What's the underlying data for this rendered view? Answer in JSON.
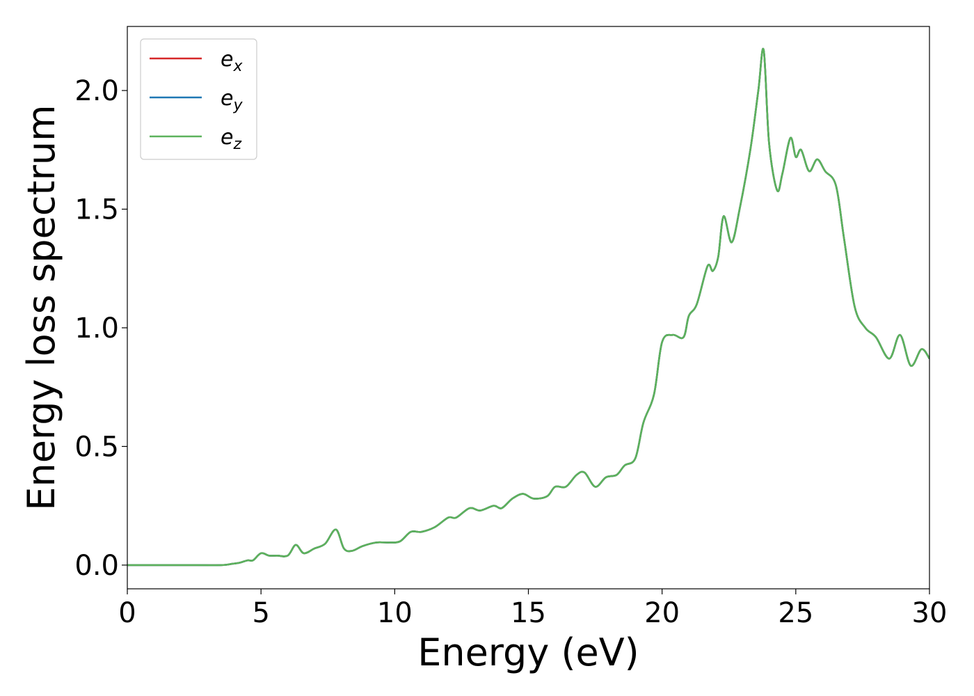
{
  "chart_data": {
    "type": "line",
    "xlabel": "Energy (eV)",
    "ylabel": "Energy loss spectrum",
    "xlim": [
      0,
      30
    ],
    "ylim": [
      -0.1,
      2.27
    ],
    "xticks": [
      "0",
      "5",
      "10",
      "15",
      "20",
      "25",
      "30"
    ],
    "yticks": [
      "0.0",
      "0.5",
      "1.0",
      "1.5",
      "2.0"
    ],
    "grid": false,
    "legend_position": "top-left",
    "series": [
      {
        "name": "e",
        "subscript": "x",
        "color": "#d62728",
        "x": [
          0,
          2,
          3.5,
          3.9,
          4.2,
          4.5,
          4.7,
          5.0,
          5.3,
          5.6,
          6.0,
          6.3,
          6.6,
          7.0,
          7.4,
          7.8,
          8.1,
          8.4,
          8.8,
          9.3,
          9.8,
          10.2,
          10.6,
          11.0,
          11.5,
          12.0,
          12.3,
          12.8,
          13.2,
          13.7,
          14.0,
          14.4,
          14.8,
          15.2,
          15.7,
          16.0,
          16.4,
          16.8,
          17.1,
          17.5,
          17.9,
          18.3,
          18.6,
          19.0,
          19.3,
          19.7,
          20.0,
          20.4,
          20.8,
          21.0,
          21.3,
          21.7,
          21.9,
          22.1,
          22.3,
          22.6,
          22.9,
          23.3,
          23.6,
          23.8,
          24.0,
          24.3,
          24.5,
          24.8,
          25.0,
          25.2,
          25.5,
          25.8,
          26.1,
          26.5,
          26.8,
          27.2,
          27.6,
          28.0,
          28.5,
          28.9,
          29.3,
          29.7,
          30.0
        ],
        "values": [
          0.0,
          0.0,
          0.0,
          0.005,
          0.01,
          0.02,
          0.02,
          0.05,
          0.04,
          0.04,
          0.04,
          0.085,
          0.05,
          0.07,
          0.09,
          0.15,
          0.07,
          0.06,
          0.08,
          0.095,
          0.095,
          0.1,
          0.14,
          0.14,
          0.16,
          0.2,
          0.2,
          0.24,
          0.23,
          0.25,
          0.24,
          0.28,
          0.3,
          0.28,
          0.29,
          0.33,
          0.33,
          0.38,
          0.39,
          0.33,
          0.37,
          0.38,
          0.42,
          0.45,
          0.6,
          0.72,
          0.94,
          0.97,
          0.96,
          1.05,
          1.1,
          1.26,
          1.24,
          1.3,
          1.47,
          1.36,
          1.5,
          1.75,
          2.0,
          2.17,
          1.78,
          1.58,
          1.65,
          1.8,
          1.72,
          1.75,
          1.66,
          1.71,
          1.66,
          1.6,
          1.38,
          1.09,
          1.0,
          0.96,
          0.87,
          0.97,
          0.84,
          0.91,
          0.87
        ]
      },
      {
        "name": "e",
        "subscript": "y",
        "color": "#1f77b4",
        "x": [
          0,
          2,
          3.5,
          3.9,
          4.2,
          4.5,
          4.7,
          5.0,
          5.3,
          5.6,
          6.0,
          6.3,
          6.6,
          7.0,
          7.4,
          7.8,
          8.1,
          8.4,
          8.8,
          9.3,
          9.8,
          10.2,
          10.6,
          11.0,
          11.5,
          12.0,
          12.3,
          12.8,
          13.2,
          13.7,
          14.0,
          14.4,
          14.8,
          15.2,
          15.7,
          16.0,
          16.4,
          16.8,
          17.1,
          17.5,
          17.9,
          18.3,
          18.6,
          19.0,
          19.3,
          19.7,
          20.0,
          20.4,
          20.8,
          21.0,
          21.3,
          21.7,
          21.9,
          22.1,
          22.3,
          22.6,
          22.9,
          23.3,
          23.6,
          23.8,
          24.0,
          24.3,
          24.5,
          24.8,
          25.0,
          25.2,
          25.5,
          25.8,
          26.1,
          26.5,
          26.8,
          27.2,
          27.6,
          28.0,
          28.5,
          28.9,
          29.3,
          29.7,
          30.0
        ],
        "values": [
          0.0,
          0.0,
          0.0,
          0.005,
          0.01,
          0.02,
          0.02,
          0.05,
          0.04,
          0.04,
          0.04,
          0.085,
          0.05,
          0.07,
          0.09,
          0.15,
          0.07,
          0.06,
          0.08,
          0.095,
          0.095,
          0.1,
          0.14,
          0.14,
          0.16,
          0.2,
          0.2,
          0.24,
          0.23,
          0.25,
          0.24,
          0.28,
          0.3,
          0.28,
          0.29,
          0.33,
          0.33,
          0.38,
          0.39,
          0.33,
          0.37,
          0.38,
          0.42,
          0.45,
          0.6,
          0.72,
          0.94,
          0.97,
          0.96,
          1.05,
          1.1,
          1.26,
          1.24,
          1.3,
          1.47,
          1.36,
          1.5,
          1.75,
          2.0,
          2.17,
          1.78,
          1.58,
          1.65,
          1.8,
          1.72,
          1.75,
          1.66,
          1.71,
          1.66,
          1.6,
          1.38,
          1.09,
          1.0,
          0.96,
          0.87,
          0.97,
          0.84,
          0.91,
          0.87
        ]
      },
      {
        "name": "e",
        "subscript": "z",
        "color": "#5cb25c",
        "x": [
          0,
          2,
          3.5,
          3.9,
          4.2,
          4.5,
          4.7,
          5.0,
          5.3,
          5.6,
          6.0,
          6.3,
          6.6,
          7.0,
          7.4,
          7.8,
          8.1,
          8.4,
          8.8,
          9.3,
          9.8,
          10.2,
          10.6,
          11.0,
          11.5,
          12.0,
          12.3,
          12.8,
          13.2,
          13.7,
          14.0,
          14.4,
          14.8,
          15.2,
          15.7,
          16.0,
          16.4,
          16.8,
          17.1,
          17.5,
          17.9,
          18.3,
          18.6,
          19.0,
          19.3,
          19.7,
          20.0,
          20.4,
          20.8,
          21.0,
          21.3,
          21.7,
          21.9,
          22.1,
          22.3,
          22.6,
          22.9,
          23.3,
          23.6,
          23.8,
          24.0,
          24.3,
          24.5,
          24.8,
          25.0,
          25.2,
          25.5,
          25.8,
          26.1,
          26.5,
          26.8,
          27.2,
          27.6,
          28.0,
          28.5,
          28.9,
          29.3,
          29.7,
          30.0
        ],
        "values": [
          0.0,
          0.0,
          0.0,
          0.005,
          0.01,
          0.02,
          0.02,
          0.05,
          0.04,
          0.04,
          0.04,
          0.085,
          0.05,
          0.07,
          0.09,
          0.15,
          0.07,
          0.06,
          0.08,
          0.095,
          0.095,
          0.1,
          0.14,
          0.14,
          0.16,
          0.2,
          0.2,
          0.24,
          0.23,
          0.25,
          0.24,
          0.28,
          0.3,
          0.28,
          0.29,
          0.33,
          0.33,
          0.38,
          0.39,
          0.33,
          0.37,
          0.38,
          0.42,
          0.45,
          0.6,
          0.72,
          0.94,
          0.97,
          0.96,
          1.05,
          1.1,
          1.26,
          1.24,
          1.3,
          1.47,
          1.36,
          1.5,
          1.75,
          2.0,
          2.17,
          1.78,
          1.58,
          1.65,
          1.8,
          1.72,
          1.75,
          1.66,
          1.71,
          1.66,
          1.6,
          1.38,
          1.09,
          1.0,
          0.96,
          0.87,
          0.97,
          0.84,
          0.91,
          0.87
        ]
      }
    ]
  }
}
